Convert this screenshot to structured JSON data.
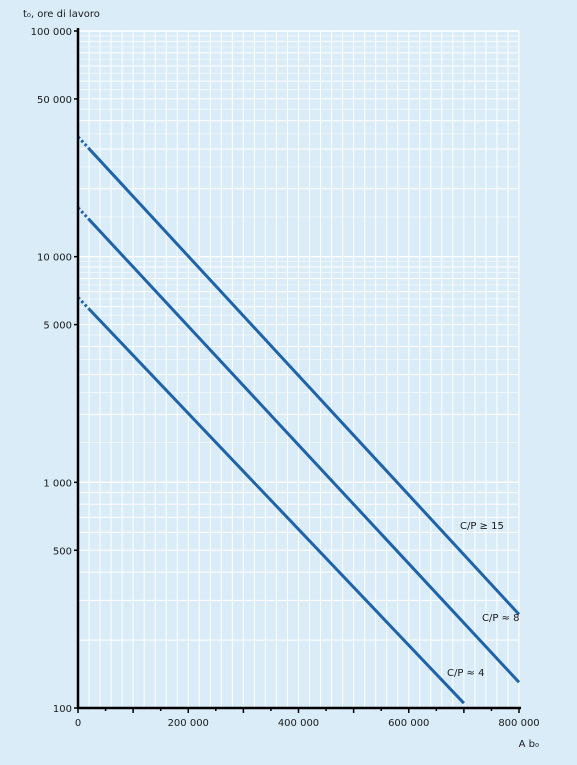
{
  "chart_data": {
    "type": "line",
    "title": "",
    "ylabel": "t₀, ore di lavoro",
    "xlabel": "A b₀",
    "xlim": [
      0,
      800000
    ],
    "ylim": [
      100,
      100000
    ],
    "yscale": "log",
    "grid": true,
    "x_ticks": [
      0,
      200000,
      400000,
      600000,
      800000
    ],
    "x_tick_labels": [
      "0",
      "200 000",
      "400 000",
      "600 000",
      "800 000"
    ],
    "y_ticks": [
      100,
      500,
      1000,
      5000,
      10000,
      50000,
      100000
    ],
    "y_tick_labels": [
      "100",
      "500",
      "1 000",
      "5 000",
      "10 000",
      "50 000",
      "100 000"
    ],
    "series": [
      {
        "name": "C/P ≥ 15",
        "x": [
          0,
          800000
        ],
        "y": [
          34000,
          260
        ]
      },
      {
        "name": "C/P ≈ 8",
        "x": [
          0,
          800000
        ],
        "y": [
          16500,
          130
        ]
      },
      {
        "name": "C/P ≈ 4",
        "x": [
          0,
          700000
        ],
        "y": [
          6600,
          105
        ]
      }
    ],
    "colors": {
      "line": "#1f63a8",
      "grid": "#ffffff",
      "axis": "#000000",
      "background": "#d9ecf8"
    }
  }
}
